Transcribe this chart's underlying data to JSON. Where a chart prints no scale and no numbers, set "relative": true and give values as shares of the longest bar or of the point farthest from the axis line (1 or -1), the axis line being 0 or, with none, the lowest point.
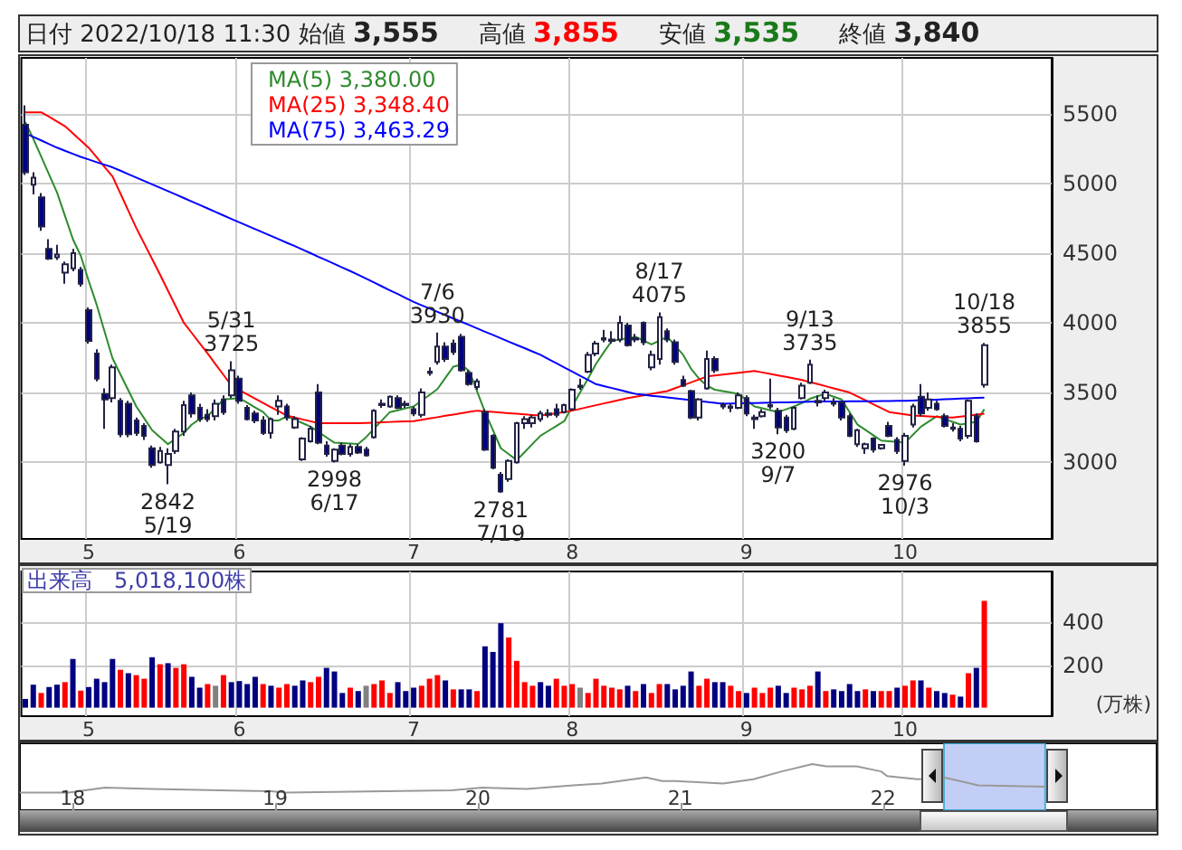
{
  "chart_data": [
    {
      "type": "candlestick",
      "title": "日付 2022/10/18 11:30",
      "annotations": [
        "始値 3,555",
        "高値 3,855",
        "安値 3,535",
        "終値 3,840",
        {
          "text": "5/31\n3725",
          "y": 3725
        },
        {
          "text": "2842\n5/19",
          "y": 2842
        },
        {
          "text": "2998\n6/17",
          "y": 2998
        },
        {
          "text": "7/6\n3930",
          "y": 3930
        },
        {
          "text": "2781\n7/19",
          "y": 2781
        },
        {
          "text": "8/17\n4075",
          "y": 4075
        },
        {
          "text": "3200\n9/7",
          "y": 3200
        },
        {
          "text": "9/13\n3735",
          "y": 3735
        },
        {
          "text": "2976\n10/3",
          "y": 2976
        },
        {
          "text": "10/18\n3855",
          "y": 3855
        }
      ],
      "categories": [
        null,
        null,
        null,
        null,
        null,
        null,
        null,
        null,
        "5",
        null,
        null,
        null,
        null,
        null,
        null,
        null,
        null,
        null,
        null,
        null,
        null,
        null,
        null,
        null,
        null,
        null,
        null,
        "6",
        null,
        null,
        null,
        null,
        null,
        null,
        null,
        null,
        null,
        null,
        null,
        null,
        null,
        null,
        null,
        null,
        null,
        null,
        null,
        null,
        null,
        "7",
        null,
        null,
        null,
        null,
        null,
        null,
        null,
        null,
        null,
        null,
        null,
        null,
        null,
        null,
        null,
        null,
        null,
        null,
        null,
        "8",
        null,
        null,
        null,
        null,
        null,
        null,
        null,
        null,
        null,
        null,
        null,
        null,
        null,
        null,
        null,
        null,
        null,
        null,
        null,
        null,
        null,
        "9",
        null,
        null,
        null,
        null,
        null,
        null,
        null,
        null,
        null,
        null,
        null,
        null,
        null,
        null,
        null,
        null,
        null,
        null,
        null,
        "10",
        null,
        null,
        null,
        null,
        null,
        null,
        null,
        null,
        null,
        null
      ],
      "colors": [
        "#000080",
        "#ffffff",
        "#000080",
        "#000080",
        "#ffffff",
        "#ffffff",
        "#ffffff",
        "#000080",
        "#000080",
        "#000080",
        "#000080",
        "#ffffff",
        "#000080",
        "#000080",
        "#000080",
        "#000080",
        "#000080",
        "#ffffff",
        "#ffffff",
        "#ffffff",
        "#ffffff",
        "#000080",
        "#000080",
        "#000080",
        "#ffffff",
        "#000080",
        "#ffffff",
        "#000080",
        "#000080",
        "#000080",
        "#000080",
        "#ffffff",
        "#ffffff",
        "#000080",
        "#ffffff",
        "#ffffff",
        "#ffffff",
        "#000080",
        "#000080",
        "#ffffff",
        "#000080",
        "#ffffff",
        "#000080",
        "#000080",
        "#ffffff",
        "#ffffff",
        "#ffffff",
        "#000080",
        "#ffffff",
        "#000080",
        "#ffffff",
        "#ffffff",
        "#ffffff",
        "#000080",
        "#000080",
        "#000080",
        "#000080",
        "#ffffff",
        "#000080",
        "#000080",
        "#000080",
        "#ffffff",
        "#ffffff",
        "#ffffff",
        "#ffffff",
        "#ffffff",
        "#000080",
        "#000080",
        "#ffffff",
        "#ffffff",
        "#ffffff",
        "#ffffff",
        "#ffffff",
        "#ffffff",
        "#ffffff",
        "#ffffff",
        "#000080",
        "#ffffff",
        "#000080",
        "#ffffff",
        "#ffffff",
        "#000080",
        "#000080",
        "#000080",
        "#000080",
        "#ffffff",
        "#ffffff",
        "#000080",
        "#000080",
        "#000080",
        "#ffffff",
        "#000080",
        "#ffffff",
        "#ffffff",
        "#ffffff",
        "#000080",
        "#000080",
        "#ffffff",
        "#ffffff",
        "#ffffff",
        "#000080",
        "#ffffff",
        "#000080",
        "#000080",
        "#000080",
        "#ffffff",
        "#ffffff",
        "#000080",
        "#ffffff",
        "#000080",
        "#000080",
        "#ffffff",
        "#ffffff",
        "#000080",
        "#ffffff",
        "#000080",
        "#000080",
        "#000080",
        "#000080",
        "#ffffff",
        "#000080",
        "#ffffff"
      ],
      "ohlc": [
        [
          5420,
          5560,
          5060,
          5080
        ],
        [
          4990,
          5080,
          4920,
          5040
        ],
        [
          4900,
          4930,
          4660,
          4690
        ],
        [
          4530,
          4600,
          4450,
          4460
        ],
        [
          4470,
          4560,
          4450,
          4490
        ],
        [
          4360,
          4440,
          4280,
          4420
        ],
        [
          4390,
          4530,
          4370,
          4500
        ],
        [
          4380,
          4400,
          4260,
          4280
        ],
        [
          4090,
          4110,
          3850,
          3870
        ],
        [
          3780,
          3810,
          3580,
          3600
        ],
        [
          3490,
          3530,
          3240,
          3450
        ],
        [
          3460,
          3700,
          3430,
          3680
        ],
        [
          3440,
          3460,
          3180,
          3200
        ],
        [
          3420,
          3440,
          3180,
          3200
        ],
        [
          3300,
          3320,
          3190,
          3210
        ],
        [
          3260,
          3280,
          3160,
          3190
        ],
        [
          3100,
          3120,
          2960,
          2980
        ],
        [
          3000,
          3110,
          2990,
          3080
        ],
        [
          2980,
          3100,
          2842,
          3060
        ],
        [
          3080,
          3240,
          3060,
          3220
        ],
        [
          3220,
          3440,
          3190,
          3410
        ],
        [
          3480,
          3500,
          3320,
          3350
        ],
        [
          3390,
          3420,
          3290,
          3310
        ],
        [
          3340,
          3380,
          3290,
          3310
        ],
        [
          3330,
          3450,
          3300,
          3420
        ],
        [
          3450,
          3480,
          3340,
          3360
        ],
        [
          3480,
          3725,
          3460,
          3660
        ],
        [
          3600,
          3620,
          3420,
          3440
        ],
        [
          3390,
          3410,
          3300,
          3310
        ],
        [
          3350,
          3370,
          3280,
          3300
        ],
        [
          3300,
          3330,
          3195,
          3210
        ],
        [
          3210,
          3320,
          3170,
          3310
        ],
        [
          3400,
          3480,
          3340,
          3440
        ],
        [
          3400,
          3420,
          3300,
          3320
        ],
        [
          3250,
          3330,
          3240,
          3310
        ],
        [
          3020,
          3180,
          3010,
          3170
        ],
        [
          3150,
          3260,
          3140,
          3240
        ],
        [
          3500,
          3560,
          3130,
          3140
        ],
        [
          3120,
          3150,
          3040,
          3060
        ],
        [
          3010,
          3100,
          2998,
          3090
        ],
        [
          3120,
          3140,
          3050,
          3060
        ],
        [
          3060,
          3130,
          3040,
          3110
        ],
        [
          3110,
          3130,
          3060,
          3070
        ],
        [
          3090,
          3110,
          3040,
          3050
        ],
        [
          3180,
          3380,
          3170,
          3370
        ],
        [
          3410,
          3450,
          3390,
          3420
        ],
        [
          3400,
          3480,
          3390,
          3470
        ],
        [
          3460,
          3480,
          3380,
          3390
        ],
        [
          3410,
          3440,
          3390,
          3420
        ],
        [
          3380,
          3400,
          3330,
          3350
        ],
        [
          3340,
          3530,
          3320,
          3500
        ],
        [
          3640,
          3680,
          3620,
          3650
        ],
        [
          3720,
          3930,
          3700,
          3830
        ],
        [
          3830,
          3860,
          3720,
          3740
        ],
        [
          3850,
          3880,
          3770,
          3790
        ],
        [
          3900,
          3920,
          3650,
          3660
        ],
        [
          3640,
          3660,
          3550,
          3560
        ],
        [
          3540,
          3600,
          3520,
          3580
        ],
        [
          3360,
          3380,
          3080,
          3090
        ],
        [
          3190,
          3200,
          2950,
          2960
        ],
        [
          2910,
          2930,
          2781,
          2790
        ],
        [
          2880,
          3020,
          2860,
          3010
        ],
        [
          3000,
          3290,
          2990,
          3280
        ],
        [
          3280,
          3330,
          3240,
          3310
        ],
        [
          3280,
          3340,
          3250,
          3320
        ],
        [
          3310,
          3370,
          3290,
          3350
        ],
        [
          3350,
          3380,
          3320,
          3340
        ],
        [
          3380,
          3420,
          3320,
          3340
        ],
        [
          3360,
          3420,
          3350,
          3410
        ],
        [
          3380,
          3530,
          3370,
          3520
        ],
        [
          3540,
          3600,
          3520,
          3550
        ],
        [
          3650,
          3790,
          3640,
          3770
        ],
        [
          3780,
          3870,
          3760,
          3850
        ],
        [
          3880,
          3950,
          3860,
          3890
        ],
        [
          3870,
          3940,
          3850,
          3880
        ],
        [
          3880,
          4050,
          3860,
          4000
        ],
        [
          3980,
          4000,
          3830,
          3840
        ],
        [
          3880,
          3920,
          3860,
          3890
        ],
        [
          4000,
          4010,
          3840,
          3860
        ],
        [
          3680,
          3800,
          3660,
          3770
        ],
        [
          3740,
          4075,
          3700,
          4040
        ],
        [
          3940,
          3960,
          3860,
          3880
        ],
        [
          3860,
          3880,
          3700,
          3720
        ],
        [
          3590,
          3620,
          3540,
          3550
        ],
        [
          3510,
          3520,
          3310,
          3320
        ],
        [
          3320,
          3460,
          3300,
          3450
        ],
        [
          3530,
          3800,
          3520,
          3740
        ],
        [
          3740,
          3760,
          3640,
          3660
        ],
        [
          3410,
          3430,
          3380,
          3400
        ],
        [
          3400,
          3420,
          3360,
          3390
        ],
        [
          3390,
          3500,
          3380,
          3480
        ],
        [
          3460,
          3480,
          3330,
          3350
        ],
        [
          3310,
          3340,
          3240,
          3320
        ],
        [
          3330,
          3380,
          3320,
          3360
        ],
        [
          3400,
          3600,
          3380,
          3410
        ],
        [
          3370,
          3390,
          3200,
          3250
        ],
        [
          3320,
          3340,
          3210,
          3230
        ],
        [
          3240,
          3400,
          3230,
          3390
        ],
        [
          3460,
          3570,
          3450,
          3550
        ],
        [
          3570,
          3735,
          3560,
          3700
        ],
        [
          3440,
          3480,
          3400,
          3430
        ],
        [
          3460,
          3520,
          3440,
          3500
        ],
        [
          3430,
          3460,
          3400,
          3420
        ],
        [
          3430,
          3440,
          3300,
          3320
        ],
        [
          3330,
          3350,
          3180,
          3190
        ],
        [
          3130,
          3240,
          3110,
          3230
        ],
        [
          3100,
          3140,
          3060,
          3130
        ],
        [
          3170,
          3180,
          3070,
          3090
        ],
        [
          3100,
          3130,
          3090,
          3125
        ],
        [
          3260,
          3290,
          3180,
          3190
        ],
        [
          3160,
          3180,
          3060,
          3080
        ],
        [
          3010,
          3210,
          2976,
          3190
        ],
        [
          3270,
          3420,
          3250,
          3400
        ],
        [
          3470,
          3560,
          3330,
          3350
        ],
        [
          3390,
          3500,
          3370,
          3450
        ],
        [
          3420,
          3440,
          3370,
          3380
        ],
        [
          3330,
          3350,
          3250,
          3260
        ],
        [
          3250,
          3280,
          3220,
          3240
        ],
        [
          3240,
          3260,
          3150,
          3170
        ],
        [
          3190,
          3450,
          3170,
          3440
        ],
        [
          3330,
          3350,
          3140,
          3150
        ],
        [
          3555,
          3855,
          3535,
          3840
        ]
      ],
      "series": [
        {
          "type": "line",
          "name": "MA(5) 3,380.00",
          "color": "#2e8b2e",
          "values": [
            5440,
            5320,
            5192,
            5063,
            4935,
            4768,
            4600,
            4480,
            4300,
            4130,
            3937,
            3745,
            3630,
            3515,
            3400,
            3315,
            3230,
            3180,
            3130,
            3170,
            3210,
            3270,
            3310,
            3330,
            3390,
            3450,
            3455,
            3460,
            3427,
            3393,
            3360,
            3300,
            3300,
            3330,
            3305,
            3280,
            3255,
            3217,
            3178,
            3140,
            3137,
            3134,
            3131,
            3180,
            3240,
            3300,
            3360,
            3373,
            3387,
            3400,
            3442,
            3483,
            3525,
            3605,
            3685,
            3700,
            3655,
            3508,
            3360,
            3230,
            3100,
            3058,
            3015,
            3073,
            3132,
            3190,
            3225,
            3260,
            3295,
            3400,
            3500,
            3600,
            3705,
            3790,
            3870,
            3880,
            3890,
            3900,
            3872,
            3845,
            3872,
            3900,
            3835,
            3770,
            3670,
            3600,
            3550,
            3520,
            3510,
            3500,
            3490,
            3445,
            3400,
            3387,
            3373,
            3360,
            3380,
            3400,
            3425,
            3455,
            3475,
            3490,
            3470,
            3450,
            3360,
            3270,
            3232,
            3193,
            3155,
            3150,
            3145,
            3140,
            3197,
            3255,
            3292,
            3330,
            3310,
            3290,
            3270,
            3280,
            3290,
            3380
          ]
        },
        {
          "type": "line",
          "name": "MA(25) 3,348.40",
          "color": "#ff0000",
          "values": [
            5510,
            5510,
            5510,
            5477,
            5443,
            5410,
            5358,
            5307,
            5255,
            5187,
            5118,
            5050,
            4927,
            4803,
            4680,
            4568,
            4457,
            4345,
            4230,
            4115,
            4000,
            3927,
            3853,
            3780,
            3703,
            3627,
            3550,
            3518,
            3487,
            3456,
            3425,
            3395,
            3365,
            3335,
            3321,
            3307,
            3294,
            3280,
            3280,
            3280,
            3280,
            3280,
            3280,
            3282,
            3284,
            3286,
            3289,
            3291,
            3293,
            3295,
            3304,
            3314,
            3323,
            3333,
            3342,
            3351,
            3361,
            3370,
            3365,
            3361,
            3356,
            3352,
            3348,
            3344,
            3339,
            3335,
            3343,
            3352,
            3360,
            3370,
            3383,
            3396,
            3409,
            3422,
            3434,
            3447,
            3460,
            3470,
            3480,
            3490,
            3500,
            3510,
            3531,
            3552,
            3573,
            3594,
            3615,
            3622,
            3628,
            3635,
            3642,
            3648,
            3655,
            3644,
            3633,
            3622,
            3612,
            3601,
            3590,
            3575,
            3560,
            3545,
            3530,
            3515,
            3500,
            3472,
            3444,
            3416,
            3388,
            3360,
            3352,
            3343,
            3335,
            3332,
            3329,
            3326,
            3323,
            3320,
            3327,
            3334,
            3341,
            3348
          ]
        },
        {
          "type": "line",
          "name": "MA(75) 3,463.29",
          "color": "#0000ff",
          "values": [
            5359,
            5333,
            5308,
            5282,
            5256,
            5234,
            5212,
            5190,
            5171,
            5152,
            5134,
            5115,
            5091,
            5066,
            5042,
            5017,
            4993,
            4969,
            4944,
            4920,
            4895,
            4870,
            4845,
            4820,
            4795,
            4770,
            4745,
            4721,
            4696,
            4672,
            4648,
            4623,
            4599,
            4574,
            4550,
            4524,
            4499,
            4473,
            4448,
            4422,
            4396,
            4371,
            4345,
            4317,
            4289,
            4261,
            4233,
            4206,
            4178,
            4150,
            4126,
            4103,
            4079,
            4055,
            4031,
            4008,
            3984,
            3960,
            3936,
            3913,
            3889,
            3865,
            3841,
            3818,
            3794,
            3770,
            3740,
            3710,
            3680,
            3650,
            3620,
            3590,
            3560,
            3546,
            3532,
            3518,
            3504,
            3490,
            3484,
            3477,
            3471,
            3465,
            3458,
            3452,
            3445,
            3439,
            3433,
            3426,
            3420,
            3421,
            3423,
            3424,
            3425,
            3426,
            3428,
            3429,
            3430,
            3431,
            3433,
            3434,
            3435,
            3435,
            3436,
            3436,
            3437,
            3437,
            3438,
            3438,
            3439,
            3439,
            3440,
            3440,
            3442,
            3445,
            3447,
            3449,
            3452,
            3454,
            3456,
            3458,
            3461,
            3463
          ]
        }
      ],
      "ylim": [
        2450,
        5900
      ],
      "yticks": [
        3000,
        3500,
        4000,
        4500,
        5000,
        5500
      ],
      "grid": true,
      "legend": "top left",
      "marker": "none"
    },
    {
      "type": "bar",
      "title": "出来高　5,018,100株",
      "ylabel": "(万株)",
      "categories": [
        null,
        null,
        null,
        null,
        null,
        null,
        null,
        null,
        "5",
        null,
        null,
        null,
        null,
        null,
        null,
        null,
        null,
        null,
        null,
        null,
        null,
        null,
        null,
        null,
        null,
        null,
        null,
        "6",
        null,
        null,
        null,
        null,
        null,
        null,
        null,
        null,
        null,
        null,
        null,
        null,
        null,
        null,
        null,
        null,
        null,
        null,
        null,
        null,
        null,
        "7",
        null,
        null,
        null,
        null,
        null,
        null,
        null,
        null,
        null,
        null,
        null,
        null,
        null,
        null,
        null,
        null,
        null,
        null,
        null,
        "8",
        null,
        null,
        null,
        null,
        null,
        null,
        null,
        null,
        null,
        null,
        null,
        null,
        null,
        null,
        null,
        null,
        null,
        null,
        null,
        null,
        null,
        "9",
        null,
        null,
        null,
        null,
        null,
        null,
        null,
        null,
        null,
        null,
        null,
        null,
        null,
        null,
        null,
        null,
        null,
        null,
        null,
        "10",
        null,
        null,
        null,
        null,
        null,
        null,
        null,
        null,
        null,
        null
      ],
      "values": [
        41,
        108,
        69,
        97,
        108,
        120,
        229,
        80,
        97,
        136,
        120,
        229,
        178,
        162,
        153,
        136,
        237,
        204,
        209,
        187,
        204,
        145,
        94,
        111,
        103,
        153,
        120,
        125,
        111,
        145,
        111,
        103,
        94,
        111,
        103,
        128,
        120,
        145,
        187,
        170,
        69,
        94,
        78,
        103,
        111,
        128,
        69,
        120,
        78,
        94,
        103,
        136,
        153,
        128,
        86,
        86,
        86,
        78,
        288,
        262,
        397,
        330,
        220,
        120,
        103,
        120,
        103,
        136,
        103,
        111,
        94,
        69,
        136,
        103,
        94,
        86,
        103,
        78,
        111,
        69,
        111,
        111,
        86,
        103,
        170,
        103,
        136,
        120,
        120,
        103,
        78,
        69,
        94,
        69,
        94,
        103,
        69,
        94,
        86,
        103,
        170,
        78,
        86,
        78,
        111,
        78,
        86,
        78,
        78,
        78,
        94,
        103,
        128,
        128,
        94,
        78,
        69,
        61,
        52,
        162,
        187,
        502
      ],
      "colors": [
        "#000080",
        "#000080",
        "#ff0000",
        "#000080",
        "#000080",
        "#ff0000",
        "#000080",
        "#ff0000",
        "#000080",
        "#000080",
        "#000080",
        "#000080",
        "#ff0000",
        "#000080",
        "#ff0000",
        "#ff0000",
        "#000080",
        "#ff0000",
        "#000080",
        "#ff0000",
        "#ff0000",
        "#000080",
        "#000080",
        "#ff0000",
        "#808080",
        "#ff0000",
        "#000080",
        "#000080",
        "#000080",
        "#000080",
        "#ff0000",
        "#000080",
        "#ff0000",
        "#ff0000",
        "#000080",
        "#000080",
        "#ff0000",
        "#ff0000",
        "#000080",
        "#000080",
        "#000080",
        "#ff0000",
        "#000080",
        "#808080",
        "#ff0000",
        "#ff0000",
        "#ff0000",
        "#000080",
        "#000080",
        "#000080",
        "#ff0000",
        "#ff0000",
        "#ff0000",
        "#000080",
        "#ff0000",
        "#000080",
        "#000080",
        "#ff0000",
        "#000080",
        "#000080",
        "#000080",
        "#ff0000",
        "#ff0000",
        "#ff0000",
        "#ff0000",
        "#000080",
        "#000080",
        "#ff0000",
        "#ff0000",
        "#ff0000",
        "#808080",
        "#ff0000",
        "#ff0000",
        "#ff0000",
        "#ff0000",
        "#ff0000",
        "#000080",
        "#ff0000",
        "#000080",
        "#ff0000",
        "#ff0000",
        "#000080",
        "#000080",
        "#000080",
        "#000080",
        "#ff0000",
        "#ff0000",
        "#000080",
        "#000080",
        "#ff0000",
        "#ff0000",
        "#000080",
        "#ff0000",
        "#ff0000",
        "#ff0000",
        "#000080",
        "#000080",
        "#ff0000",
        "#ff0000",
        "#ff0000",
        "#000080",
        "#ff0000",
        "#000080",
        "#000080",
        "#000080",
        "#000080",
        "#ff0000",
        "#000080",
        "#ff0000",
        "#ff0000",
        "#000080",
        "#ff0000",
        "#ff0000",
        "#000080",
        "#ff0000",
        "#000080",
        "#000080",
        "#ff0000",
        "#000080",
        "#ff0000",
        "#000080",
        "#ff0000"
      ],
      "ylim": [
        -40,
        640
      ],
      "yticks": [
        200,
        400
      ],
      "grid": true
    },
    {
      "type": "line",
      "relative": true,
      "color": "#999999",
      "x": [
        2017.74,
        2017.98,
        2018.16,
        2018.39,
        2018.98,
        2019.05,
        2019.87,
        2020.02,
        2020.24,
        2020.47,
        2020.61,
        2020.83,
        2020.91,
        2020.98,
        2021.21,
        2021.36,
        2021.5,
        2021.65,
        2021.72,
        2021.87,
        2021.99,
        2022.02,
        2022.17,
        2022.3,
        2022.47,
        2022.8
      ],
      "values": [
        0.38,
        0.38,
        0.49,
        0.46,
        0.41,
        0.38,
        0.43,
        0.49,
        0.46,
        0.54,
        0.58,
        0.71,
        0.63,
        0.63,
        0.58,
        0.67,
        0.84,
        1,
        0.95,
        0.95,
        0.84,
        0.74,
        0.67,
        0.71,
        0.54,
        0.51
      ],
      "xlim": [
        2017.74,
        2023.35
      ],
      "xticks": [
        {
          "value": 2018,
          "label": "18"
        },
        {
          "value": 2019,
          "label": "19"
        },
        {
          "value": 2020,
          "label": "20"
        },
        {
          "value": 2021,
          "label": "21"
        },
        {
          "value": 2022,
          "label": "22"
        }
      ],
      "bands": [
        {
          "axis": "x",
          "from": 2022.3,
          "to": 2022.8,
          "color": "#b8c6f6"
        }
      ],
      "tick_labels": "x"
    }
  ]
}
